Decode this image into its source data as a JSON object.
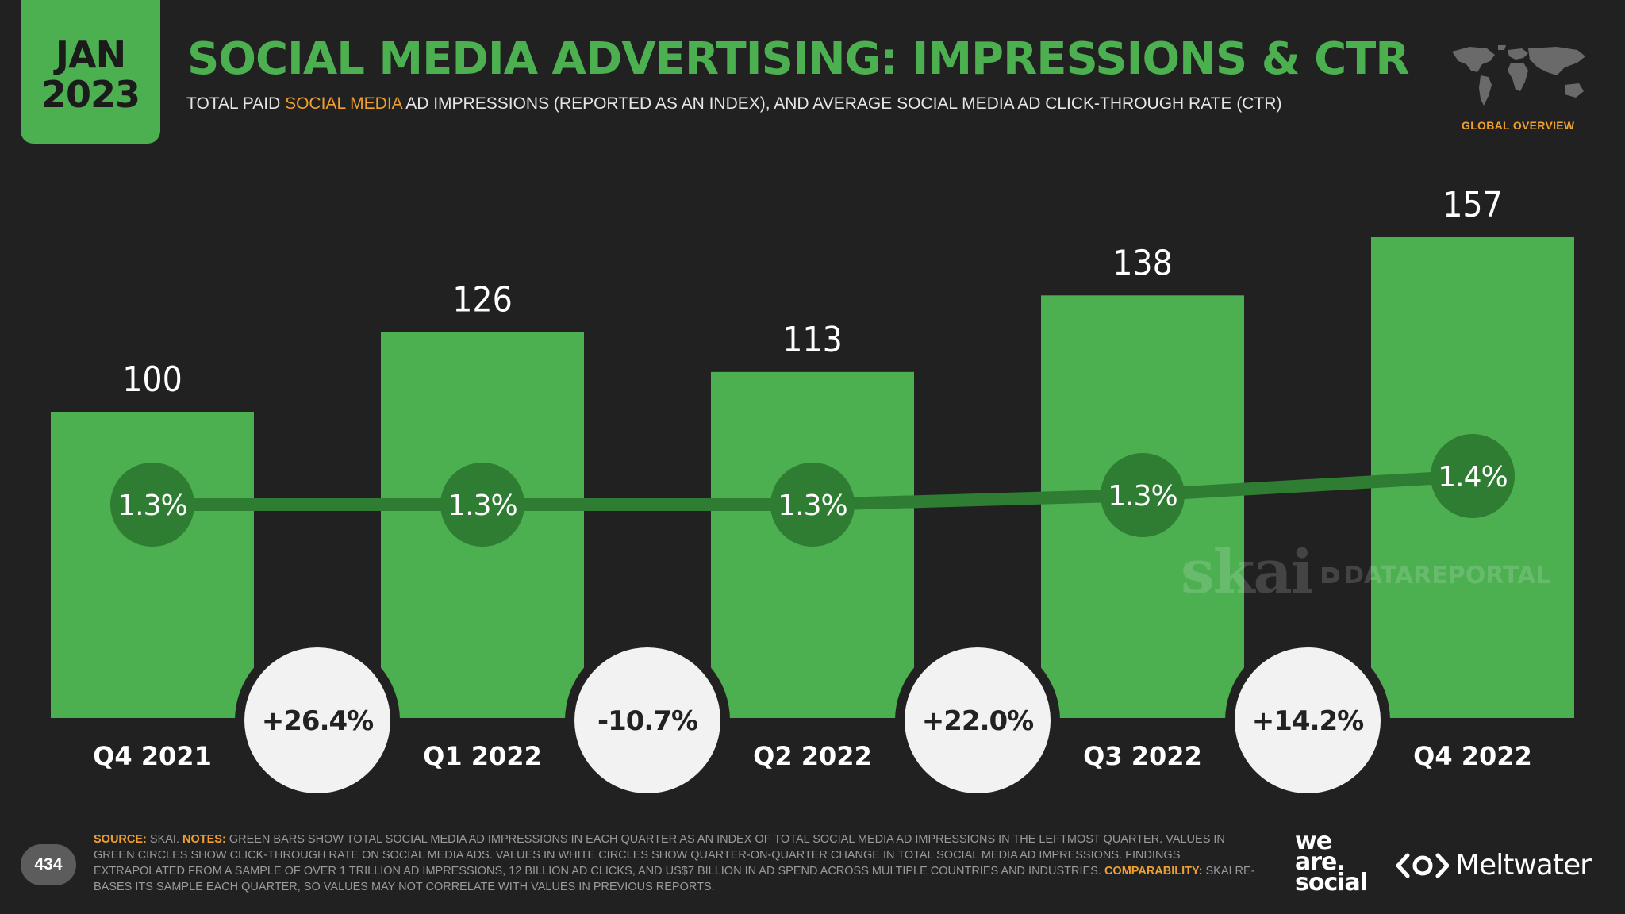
{
  "header": {
    "month": "JAN",
    "year": "2023",
    "title": "SOCIAL MEDIA ADVERTISING: IMPRESSIONS & CTR",
    "subtitle_pre": "TOTAL PAID ",
    "subtitle_highlight": "SOCIAL MEDIA",
    "subtitle_post": " AD IMPRESSIONS (REPORTED AS AN INDEX), AND AVERAGE SOCIAL MEDIA AD CLICK-THROUGH RATE (CTR)",
    "section": "GLOBAL OVERVIEW"
  },
  "chart_data": {
    "type": "bar",
    "categories": [
      "Q4 2021",
      "Q1 2022",
      "Q2 2022",
      "Q3 2022",
      "Q4 2022"
    ],
    "values": [
      100,
      126,
      113,
      138,
      157
    ],
    "value_labels": [
      "100",
      "126",
      "113",
      "138",
      "157"
    ],
    "ctr": [
      1.3,
      1.3,
      1.3,
      1.3,
      1.4
    ],
    "ctr_labels": [
      "1.3%",
      "1.3%",
      "1.3%",
      "1.3%",
      "1.4%"
    ],
    "qoq_change": [
      26.4,
      -10.7,
      22.0,
      14.2
    ],
    "qoq_change_labels": [
      "+26.4%",
      "-10.7%",
      "+22.0%",
      "+14.2%"
    ],
    "colors": {
      "bar": "#4caf50",
      "ctr_circle": "#2e7d32",
      "ctr_line": "#2e7d32",
      "change_circle": "#f2f2f2",
      "background": "#212121"
    }
  },
  "watermarks": {
    "skai": "skai",
    "datareportal": "DATAREPORTAL"
  },
  "footer": {
    "page_number": "434",
    "source_key": "SOURCE:",
    "source_text": " SKAI. ",
    "notes_key": "NOTES:",
    "notes_text": " GREEN BARS SHOW TOTAL SOCIAL MEDIA AD IMPRESSIONS IN EACH QUARTER AS AN INDEX OF TOTAL SOCIAL MEDIA AD IMPRESSIONS IN THE LEFTMOST QUARTER. VALUES IN GREEN CIRCLES SHOW CLICK-THROUGH RATE ON SOCIAL MEDIA ADS. VALUES IN WHITE CIRCLES SHOW QUARTER-ON-QUARTER CHANGE IN TOTAL SOCIAL MEDIA AD IMPRESSIONS. FINDINGS EXTRAPOLATED FROM A SAMPLE OF OVER 1 TRILLION AD IMPRESSIONS, 12 BILLION AD CLICKS, AND US$7 BILLION IN AD SPEND ACROSS MULTIPLE COUNTRIES AND INDUSTRIES. ",
    "comparability_key": "COMPARABILITY:",
    "comparability_text": " SKAI RE-BASES ITS SAMPLE EACH QUARTER, SO VALUES MAY NOT CORRELATE WITH VALUES IN PREVIOUS REPORTS.",
    "brand_we": "we",
    "brand_are": "are.",
    "brand_social": "social",
    "brand_meltwater": "Meltwater"
  }
}
